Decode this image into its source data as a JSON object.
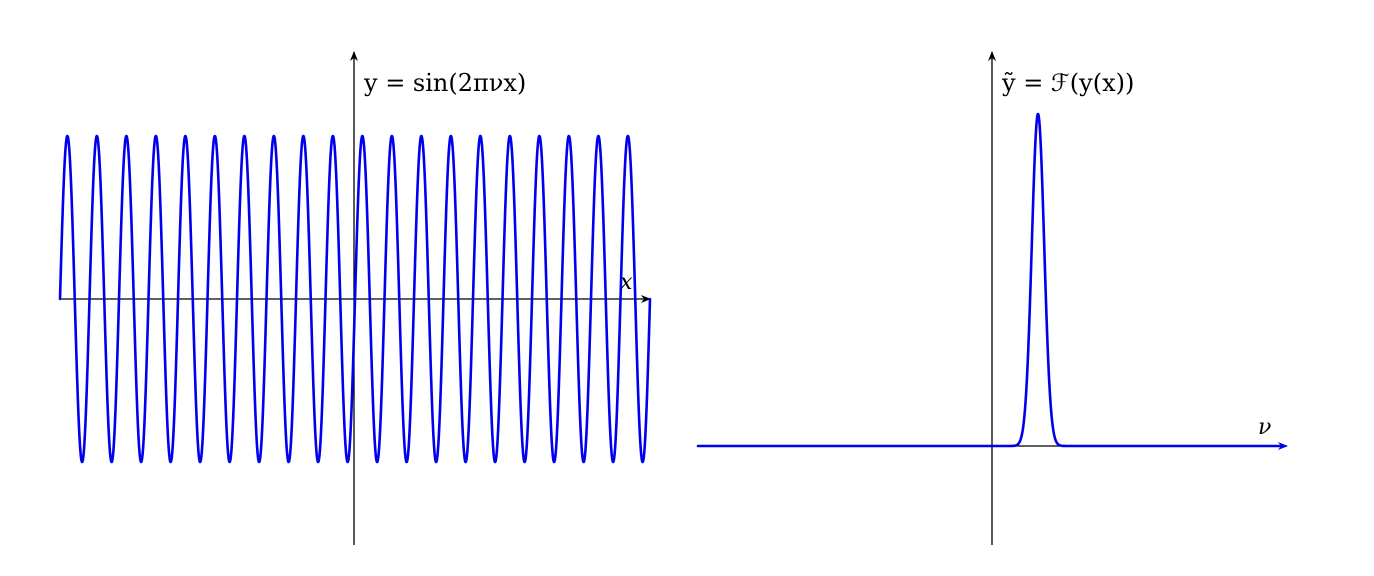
{
  "colors": {
    "curve": "#0000ee",
    "axis": "#000000"
  },
  "chart_data": [
    {
      "type": "line",
      "title": "",
      "ylabel": "y = sin(2πνx)",
      "xlabel": "x",
      "function": "sin",
      "cycles": 20,
      "amplitude": 1,
      "grid": false
    },
    {
      "type": "line",
      "title": "",
      "ylabel": "ỹ = ℱ(y(x))",
      "xlabel": "ν",
      "shape": "single-peak",
      "grid": false
    }
  ]
}
